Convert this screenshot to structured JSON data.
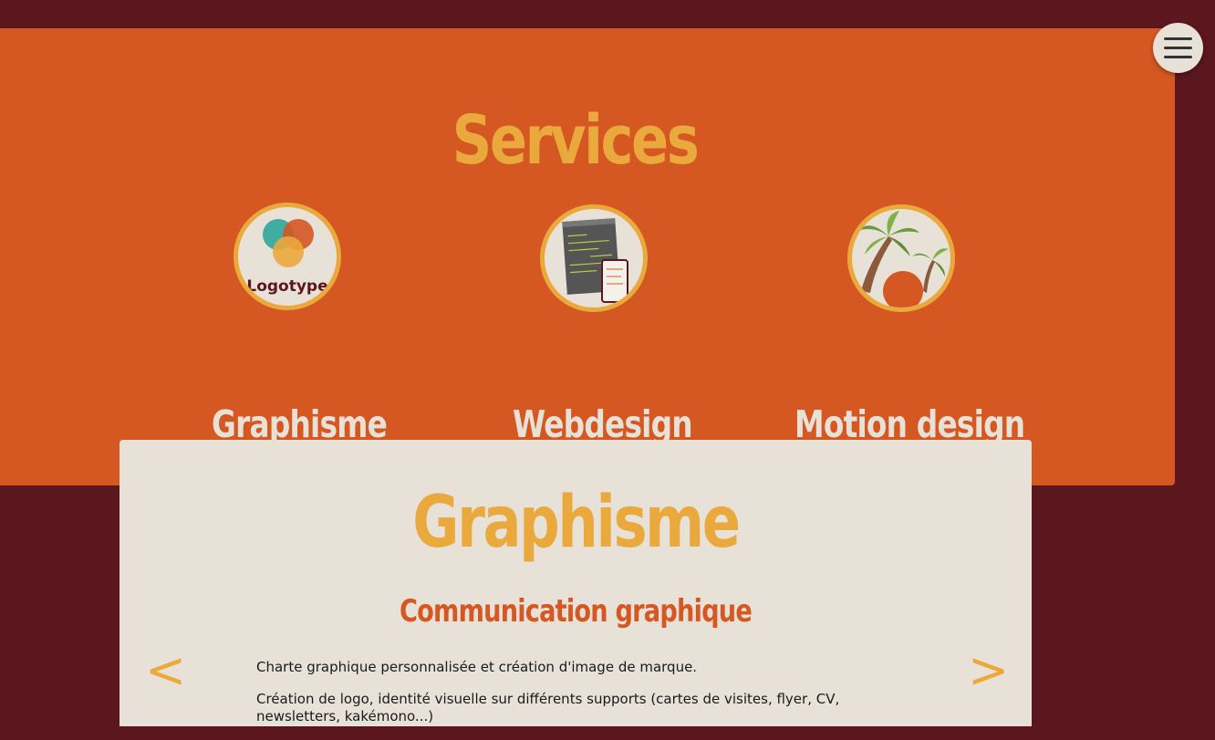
{
  "hero": {
    "title": "Services"
  },
  "services": [
    {
      "label": "Graphisme",
      "icon": "logotype-icon",
      "icon_text": "Logotype"
    },
    {
      "label": "Webdesign",
      "icon": "browser-mockup-icon"
    },
    {
      "label": "Motion design",
      "icon": "palm-trees-icon"
    }
  ],
  "card": {
    "title": "Graphisme",
    "subtitle": "Communication graphique",
    "paragraphs": [
      "Charte graphique personnalisée et création d'image de marque.",
      "Création de logo, identité visuelle sur différents supports (cartes de visites, flyer, CV, newsletters, kakémono...)"
    ],
    "prev": "<",
    "next": ">"
  },
  "colors": {
    "background": "#5c161d",
    "orange": "#d55722",
    "gold": "#eaa93d",
    "cream": "#e7e1d8"
  }
}
